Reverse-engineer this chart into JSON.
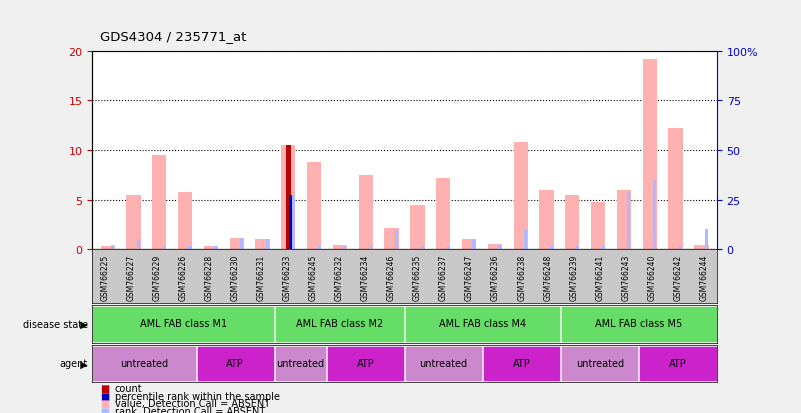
{
  "title": "GDS4304 / 235771_at",
  "samples": [
    "GSM766225",
    "GSM766227",
    "GSM766229",
    "GSM766226",
    "GSM766228",
    "GSM766230",
    "GSM766231",
    "GSM766233",
    "GSM766245",
    "GSM766232",
    "GSM766234",
    "GSM766246",
    "GSM766235",
    "GSM766237",
    "GSM766247",
    "GSM766236",
    "GSM766238",
    "GSM766248",
    "GSM766239",
    "GSM766241",
    "GSM766243",
    "GSM766240",
    "GSM766242",
    "GSM766244"
  ],
  "value_bars": [
    0.3,
    5.5,
    9.5,
    5.8,
    0.3,
    1.2,
    1.1,
    10.5,
    8.8,
    0.5,
    7.5,
    2.2,
    4.5,
    7.2,
    1.1,
    0.6,
    10.8,
    6.0,
    5.5,
    4.8,
    6.0,
    19.2,
    12.2,
    0.5
  ],
  "rank_bars": [
    0.5,
    1.1,
    0.3,
    0.3,
    0.3,
    1.2,
    1.1,
    5.5,
    0.3,
    0.3,
    0.3,
    2.1,
    0.3,
    0.3,
    1.1,
    0.5,
    2.1,
    0.3,
    0.3,
    0.3,
    5.8,
    7.0,
    0.3,
    2.1
  ],
  "count_special_idx": 7,
  "count_special_val": 10.5,
  "percentile_special_val": 5.5,
  "disease_state_groups": [
    {
      "label": "AML FAB class M1",
      "start": 0,
      "end": 7
    },
    {
      "label": "AML FAB class M2",
      "start": 7,
      "end": 12
    },
    {
      "label": "AML FAB class M4",
      "start": 12,
      "end": 18
    },
    {
      "label": "AML FAB class M5",
      "start": 18,
      "end": 24
    }
  ],
  "agent_groups": [
    {
      "label": "untreated",
      "start": 0,
      "end": 4
    },
    {
      "label": "ATP",
      "start": 4,
      "end": 7
    },
    {
      "label": "untreated",
      "start": 7,
      "end": 9
    },
    {
      "label": "ATP",
      "start": 9,
      "end": 12
    },
    {
      "label": "untreated",
      "start": 12,
      "end": 15
    },
    {
      "label": "ATP",
      "start": 15,
      "end": 18
    },
    {
      "label": "untreated",
      "start": 18,
      "end": 21
    },
    {
      "label": "ATP",
      "start": 21,
      "end": 24
    }
  ],
  "ylim": [
    0,
    20
  ],
  "yticks_left": [
    0,
    5,
    10,
    15,
    20
  ],
  "yticks_right": [
    0,
    25,
    50,
    75,
    100
  ],
  "ytick_labels_right": [
    "0",
    "25",
    "50",
    "75",
    "100%"
  ],
  "value_bar_color": "#FFB0B0",
  "rank_bar_color": "#B0B8FF",
  "count_bar_color": "#BB0000",
  "percentile_bar_color": "#0000BB",
  "disease_color": "#66DD66",
  "untreated_color": "#CC88CC",
  "atp_color": "#CC22CC",
  "left_yaxis_color": "#CC0000",
  "right_yaxis_color": "#0000CC",
  "grid_color": "#000000",
  "xlabels_bg": "#C8C8C8",
  "fig_bg": "#F0F0F0",
  "legend_items": [
    {
      "color": "#BB0000",
      "label": "count"
    },
    {
      "color": "#0000BB",
      "label": "percentile rank within the sample"
    },
    {
      "color": "#FFB0B0",
      "label": "value, Detection Call = ABSENT"
    },
    {
      "color": "#B0B8FF",
      "label": "rank, Detection Call = ABSENT"
    }
  ]
}
